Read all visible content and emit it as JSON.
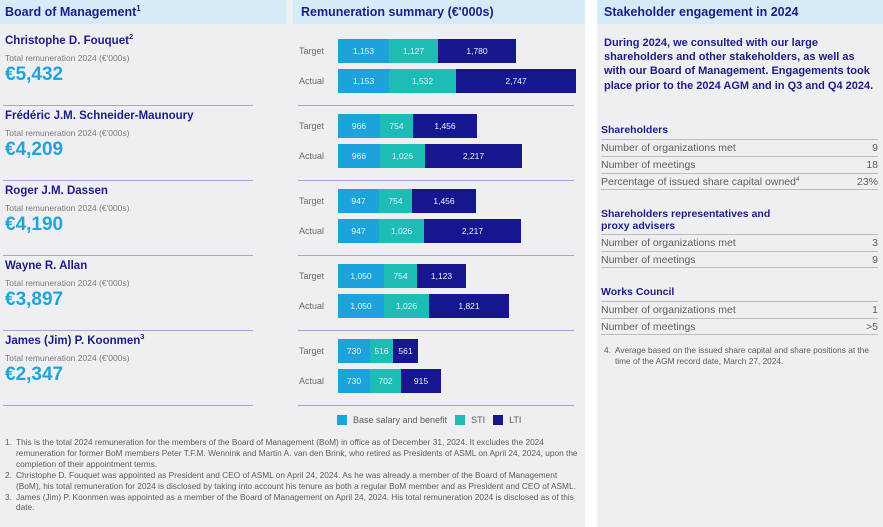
{
  "left_header": {
    "title": "Board of Management",
    "sup": "1"
  },
  "chart_header": {
    "title": "Remuneration summary (€'000s)"
  },
  "people": [
    {
      "name": "Christophe D. Fouquet",
      "sup": "2",
      "label": "Total remuneration 2024 (€'000s)",
      "total": "€5,432"
    },
    {
      "name": "Frédéric J.M. Schneider-Maunoury",
      "sup": "",
      "label": "Total remuneration 2024 (€'000s)",
      "total": "€4,209"
    },
    {
      "name": "Roger J.M. Dassen",
      "sup": "",
      "label": "Total remuneration 2024 (€'000s)",
      "total": "€4,190"
    },
    {
      "name": "Wayne R. Allan",
      "sup": "",
      "label": "Total remuneration 2024 (€'000s)",
      "total": "€3,897"
    },
    {
      "name": "James (Jim) P. Koonmen",
      "sup": "3",
      "label": "Total remuneration 2024 (€'000s)",
      "total": "€2,347"
    }
  ],
  "colors": {
    "base": "#1ea2dc",
    "sti": "#1dbcb4",
    "lti": "#16168f",
    "navy": "#1d1d8a",
    "accent": "#1ea6dc"
  },
  "chart_data": {
    "type": "bar",
    "orientation": "horizontal-stacked",
    "title": "Remuneration summary (€'000s)",
    "categories": [
      "Target",
      "Actual"
    ],
    "groups": [
      "Christophe D. Fouquet",
      "Frédéric J.M. Schneider-Maunoury",
      "Roger J.M. Dassen",
      "Wayne R. Allan",
      "James (Jim) P. Koonmen"
    ],
    "series": [
      {
        "name": "Base salary and benefit",
        "values": [
          [
            1153,
            1153
          ],
          [
            966,
            966
          ],
          [
            947,
            947
          ],
          [
            1050,
            1050
          ],
          [
            730,
            730
          ]
        ],
        "labels": [
          [
            "1,153",
            "1,153"
          ],
          [
            "966",
            "966"
          ],
          [
            "947",
            "947"
          ],
          [
            "1,050",
            "1,050"
          ],
          [
            "730",
            "730"
          ]
        ]
      },
      {
        "name": "STI",
        "values": [
          [
            1127,
            1532
          ],
          [
            754,
            1026
          ],
          [
            754,
            1026
          ],
          [
            754,
            1026
          ],
          [
            516,
            702
          ]
        ],
        "labels": [
          [
            "1,127",
            "1,532"
          ],
          [
            "754",
            "1,026"
          ],
          [
            "754",
            "1,026"
          ],
          [
            "754",
            "1,026"
          ],
          [
            "516",
            "702"
          ]
        ]
      },
      {
        "name": "LTI",
        "values": [
          [
            1780,
            2747
          ],
          [
            1456,
            2217
          ],
          [
            1456,
            2217
          ],
          [
            1123,
            1821
          ],
          [
            561,
            915
          ]
        ],
        "labels": [
          [
            "1,780",
            "2,747"
          ],
          [
            "1,456",
            "2,217"
          ],
          [
            "1,456",
            "2,217"
          ],
          [
            "1,123",
            "1,821"
          ],
          [
            "561",
            "915"
          ]
        ]
      }
    ],
    "legend": [
      "Base salary and benefit",
      "STI",
      "LTI"
    ],
    "legend_position": "bottom",
    "xlabel": "",
    "ylabel": ""
  },
  "footnotes": [
    {
      "num": "1.",
      "text": "This is the total 2024 remuneration for the members of the Board of Management (BoM) in office as of December 31, 2024. It excludes the 2024 remuneration for former BoM members Peter T.F.M. Wennink and Martin A. van den Brink, who retired as Presidents of ASML on April 24, 2024, upon the completion of their appointment terms."
    },
    {
      "num": "2.",
      "text": "Christophe D. Fouquet was appointed as President and CEO of ASML on April 24, 2024. As he was already a member of the Board of Management (BoM), his total remuneration for 2024 is disclosed by taking into account his tenure as both a regular BoM member and as President and CEO of ASML."
    },
    {
      "num": "3.",
      "text": "James (Jim) P. Koonmen was appointed as a member of the Board of Management on April 24, 2024. His total remuneration 2024 is disclosed as of this date."
    }
  ],
  "stakeholder": {
    "title": "Stakeholder engagement in 2024",
    "intro": "During 2024, we consulted with our large shareholders and other stakeholders, as well as with our Board of Management. Engagements took place prior to the 2024 AGM and in Q3 and Q4 2024.",
    "sections": [
      {
        "title": "Shareholders",
        "rows": [
          {
            "label": "Number of organizations met",
            "sup": "",
            "value": "9"
          },
          {
            "label": "Number of meetings",
            "sup": "",
            "value": "18"
          },
          {
            "label": "Percentage of issued share capital owned",
            "sup": "4",
            "value": "23%"
          }
        ]
      },
      {
        "title": "Shareholders representatives and proxy advisers",
        "rows": [
          {
            "label": "Number of organizations met",
            "sup": "",
            "value": "3"
          },
          {
            "label": "Number of meetings",
            "sup": "",
            "value": "9"
          }
        ]
      },
      {
        "title": "Works Council",
        "rows": [
          {
            "label": "Number of organizations met",
            "sup": "",
            "value": "1"
          },
          {
            "label": "Number of meetings",
            "sup": "",
            "value": ">5"
          }
        ]
      }
    ],
    "footnote": {
      "num": "4.",
      "text": "Average based on the issued share capital and share positions at the time of the AGM record date, March 27, 2024."
    }
  }
}
